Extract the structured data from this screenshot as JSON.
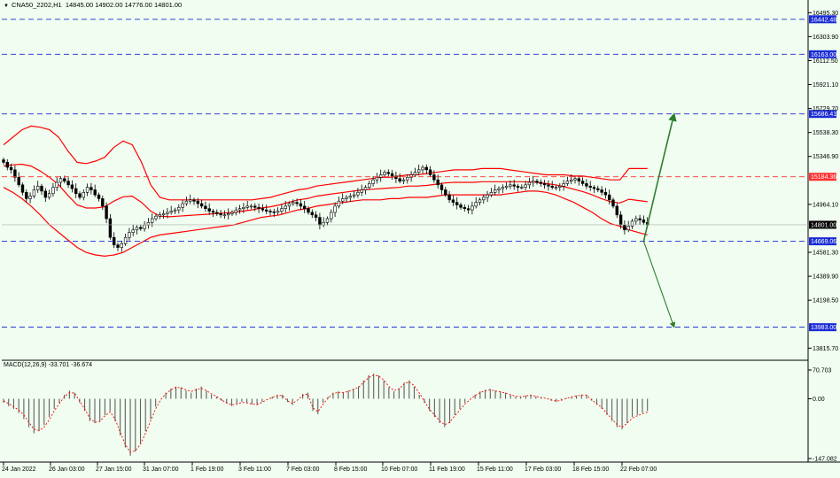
{
  "header": {
    "arrow": "▼",
    "symbol": "CNA50_2202,H1",
    "ohlc": "14845.00 14902.00 14776.00 14801.00"
  },
  "macd_header": {
    "label": "MACD(12,26,9) -33.701 -36.674"
  },
  "colors": {
    "background": "#f0fdf0",
    "candle": "#000000",
    "bollinger": "#ff0000",
    "level_line": "#1a2bd6",
    "level_label_bg": "#1a2bd6",
    "red_level": "#ff3030",
    "arrow": "#2e7d2e",
    "macd_hist": "#606060",
    "macd_signal": "#ff0000"
  },
  "chart_data": {
    "type": "candlestick",
    "y_axis": {
      "ticks": [
        16495.3,
        16303.9,
        16112.5,
        15921.1,
        15729.7,
        15538.3,
        15346.9,
        14964.1,
        14581.3,
        14389.9,
        14198.5,
        13815.7
      ],
      "range": [
        13740,
        16540
      ]
    },
    "levels": [
      {
        "value": 16442.48,
        "label": "16442.48",
        "style": "blue-dash"
      },
      {
        "value": 16163.0,
        "label": "16163.00",
        "style": "blue-dash"
      },
      {
        "value": 15686.41,
        "label": "15686.41",
        "style": "blue-dash"
      },
      {
        "value": 15184.36,
        "label": "15184.36",
        "style": "red-dash"
      },
      {
        "value": 14669.06,
        "label": "14669.06",
        "style": "blue-dash"
      },
      {
        "value": 13983.0,
        "label": "13983.00",
        "style": "blue-dash"
      }
    ],
    "current_price": {
      "value": 14801.0,
      "label": "14801.00"
    },
    "x_labels": [
      "24 Jan 2022",
      "26 Jan 03:00",
      "27 Jan 15:00",
      "31 Jan 07:00",
      "1 Feb 19:00",
      "3 Feb 11:00",
      "7 Feb 03:00",
      "8 Feb 15:00",
      "10 Feb 07:00",
      "11 Feb 19:00",
      "15 Feb 11:00",
      "17 Feb 03:00",
      "18 Feb 15:00",
      "22 Feb 07:00"
    ],
    "closes": [
      15300,
      15260,
      15240,
      15180,
      15120,
      15060,
      15010,
      15030,
      15080,
      15110,
      15070,
      15020,
      15050,
      15100,
      15140,
      15170,
      15150,
      15120,
      15090,
      15050,
      15020,
      15060,
      15100,
      15080,
      15040,
      15010,
      14950,
      14850,
      14700,
      14640,
      14620,
      14650,
      14700,
      14740,
      14760,
      14780,
      14770,
      14800,
      14820,
      14850,
      14870,
      14880,
      14890,
      14900,
      14910,
      14920,
      14940,
      14970,
      14990,
      15000,
      14990,
      14970,
      14950,
      14930,
      14910,
      14900,
      14890,
      14880,
      14880,
      14890,
      14900,
      14920,
      14930,
      14940,
      14950,
      14950,
      14940,
      14930,
      14920,
      14910,
      14905,
      14900,
      14910,
      14930,
      14950,
      14970,
      14980,
      14970,
      14950,
      14930,
      14900,
      14880,
      14860,
      14800,
      14820,
      14850,
      14900,
      14950,
      14990,
      15010,
      15020,
      15030,
      15040,
      15060,
      15080,
      15100,
      15130,
      15160,
      15180,
      15200,
      15220,
      15210,
      15190,
      15170,
      15150,
      15160,
      15180,
      15200,
      15220,
      15240,
      15260,
      15240,
      15200,
      15160,
      15120,
      15080,
      15040,
      15000,
      14980,
      14960,
      14940,
      14930,
      14920,
      14950,
      14980,
      15000,
      15020,
      15040,
      15060,
      15080,
      15090,
      15100,
      15110,
      15120,
      15110,
      15100,
      15100,
      15120,
      15140,
      15150,
      15140,
      15130,
      15120,
      15110,
      15100,
      15100,
      15110,
      15130,
      15150,
      15160,
      15170,
      15150,
      15130,
      15110,
      15100,
      15090,
      15080,
      15060,
      15040,
      15000,
      14950,
      14880,
      14800,
      14760,
      14790,
      14830,
      14850,
      14840,
      14820,
      14801
    ],
    "bb_upper": [
      15440,
      15500,
      15560,
      15590,
      15580,
      15560,
      15500,
      15390,
      15300,
      15290,
      15310,
      15340,
      15420,
      15470,
      15440,
      15300,
      15120,
      15020,
      15000,
      15000,
      15000,
      15000,
      15000,
      15000,
      15000,
      15000,
      15000,
      15000,
      15010,
      15020,
      15040,
      15060,
      15080,
      15090,
      15110,
      15120,
      15130,
      15140,
      15150,
      15160,
      15170,
      15180,
      15180,
      15190,
      15200,
      15200,
      15210,
      15220,
      15230,
      15240,
      15240,
      15240,
      15250,
      15250,
      15250,
      15240,
      15230,
      15220,
      15210,
      15200,
      15200,
      15200,
      15190,
      15190,
      15180,
      15170,
      15160,
      15160,
      15250,
      15250,
      15250
    ],
    "bb_lower": [
      15100,
      15060,
      15010,
      14950,
      14880,
      14800,
      14740,
      14680,
      14620,
      14580,
      14560,
      14550,
      14560,
      14580,
      14620,
      14660,
      14700,
      14720,
      14730,
      14740,
      14750,
      14760,
      14770,
      14780,
      14790,
      14800,
      14820,
      14840,
      14860,
      14870,
      14880,
      14900,
      14920,
      14930,
      14950,
      14960,
      14970,
      14980,
      14990,
      15000,
      15000,
      15000,
      15010,
      15010,
      15020,
      15020,
      15020,
      15030,
      15040,
      15040,
      15040,
      15040,
      15040,
      15040,
      15040,
      15050,
      15060,
      15070,
      15070,
      15060,
      15040,
      15010,
      14980,
      14940,
      14900,
      14850,
      14810,
      14790,
      14760,
      14740,
      14720
    ],
    "projection": {
      "start": {
        "index": 168,
        "value": 14669.06
      },
      "up": [
        {
          "index": 172,
          "value": 15184.36
        },
        {
          "index": 176,
          "value": 15686.41
        }
      ],
      "down": {
        "index": 176,
        "value": 13983.0
      }
    },
    "macd": {
      "name": "MACD(12,26,9)",
      "ticks": [
        70.703,
        0.0,
        -147.082
      ],
      "range": [
        -147.082,
        70.703
      ],
      "hist": [
        -10,
        -18,
        -25,
        -35,
        -50,
        -70,
        -85,
        -80,
        -65,
        -45,
        -25,
        -10,
        10,
        20,
        15,
        -10,
        -30,
        -55,
        -60,
        -55,
        -40,
        -30,
        -55,
        -90,
        -120,
        -140,
        -130,
        -110,
        -80,
        -50,
        -20,
        0,
        15,
        25,
        30,
        28,
        20,
        15,
        25,
        30,
        20,
        10,
        5,
        -5,
        -12,
        -18,
        -14,
        -8,
        -10,
        -14,
        -16,
        -8,
        0,
        5,
        10,
        10,
        -8,
        -15,
        0,
        12,
        15,
        -30,
        -38,
        -10,
        5,
        15,
        18,
        16,
        20,
        25,
        30,
        45,
        58,
        62,
        58,
        45,
        28,
        18,
        26,
        40,
        45,
        30,
        10,
        -10,
        -30,
        -45,
        -60,
        -70,
        -60,
        -40,
        -25,
        -10,
        0,
        10,
        18,
        22,
        24,
        20,
        18,
        15,
        10,
        5,
        4,
        8,
        10,
        6,
        3,
        0,
        -5,
        -8,
        -4,
        2,
        5,
        8,
        10,
        10,
        -5,
        -15,
        -25,
        -40,
        -55,
        -70,
        -75,
        -60,
        -45,
        -40,
        -35,
        -30
      ],
      "signal": [
        -5,
        -12,
        -20,
        -28,
        -40,
        -58,
        -75,
        -78,
        -70,
        -52,
        -30,
        -12,
        5,
        15,
        14,
        -5,
        -25,
        -48,
        -58,
        -56,
        -42,
        -32,
        -50,
        -82,
        -112,
        -132,
        -128,
        -112,
        -85,
        -55,
        -25,
        -2,
        12,
        22,
        28,
        27,
        22,
        18,
        22,
        26,
        20,
        12,
        6,
        -3,
        -10,
        -15,
        -13,
        -9,
        -10,
        -13,
        -14,
        -9,
        -2,
        3,
        8,
        8,
        -5,
        -12,
        -3,
        8,
        12,
        -22,
        -32,
        -14,
        2,
        12,
        16,
        15,
        18,
        23,
        28,
        40,
        52,
        58,
        56,
        46,
        30,
        20,
        24,
        36,
        42,
        32,
        14,
        -6,
        -26,
        -40,
        -54,
        -64,
        -58,
        -42,
        -28,
        -13,
        -2,
        8,
        15,
        20,
        22,
        19,
        17,
        14,
        10,
        6,
        5,
        7,
        9,
        6,
        3,
        1,
        -3,
        -6,
        -4,
        1,
        4,
        7,
        9,
        9,
        -3,
        -12,
        -22,
        -36,
        -50,
        -64,
        -70,
        -60,
        -48,
        -42,
        -37,
        -33
      ]
    }
  }
}
